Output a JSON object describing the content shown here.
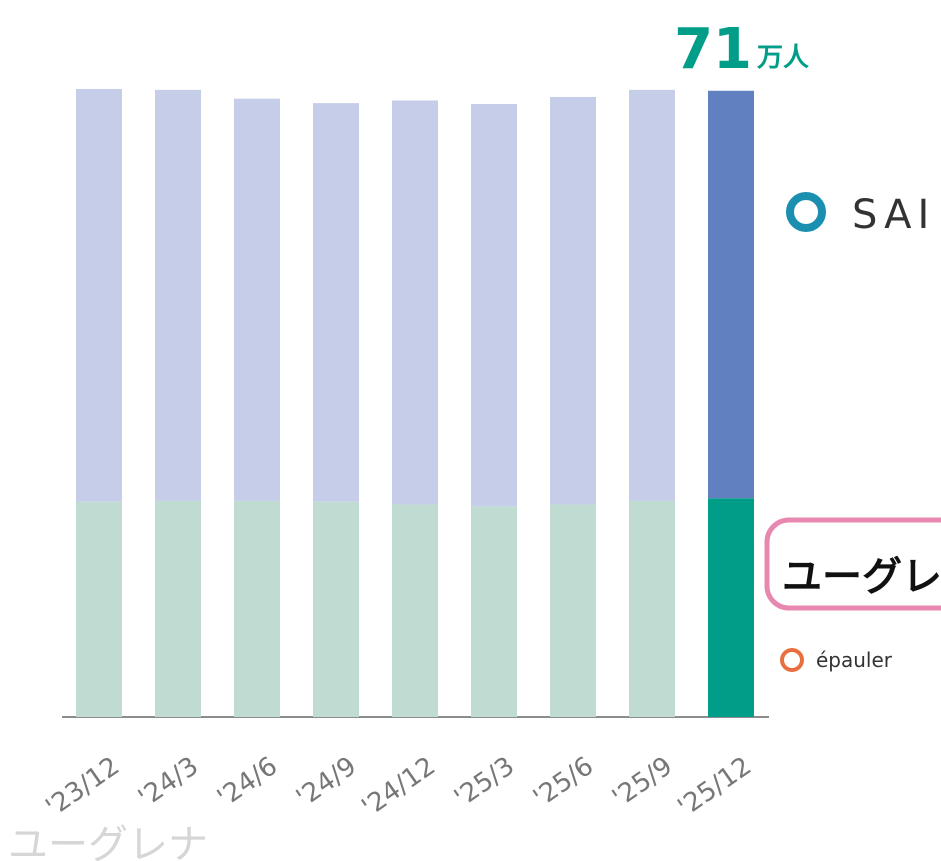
{
  "chart_data": {
    "type": "stacked_bar",
    "total_value": 71,
    "total_unit": "万人",
    "categories": [
      "'23/12",
      "'24/3",
      "'24/6",
      "'24/9",
      "'24/12",
      "'25/3",
      "'25/6",
      "'25/9",
      "'25/12"
    ],
    "series": [
      {
        "color": "#bfdbd2",
        "highlight_color": "#009e88",
        "values": [
          24.4,
          24.5,
          24.5,
          24.4,
          24.1,
          23.9,
          24.1,
          24.5,
          24.8
        ]
      },
      {
        "color": "#c6cde8",
        "highlight_color": "#6080c0",
        "values": [
          46.8,
          46.6,
          45.6,
          45.2,
          45.8,
          45.6,
          46.2,
          46.6,
          46.2
        ]
      }
    ],
    "logos": {
      "qsai": "SAI",
      "euglena": "ユーグレナ",
      "epauler": "épauler"
    }
  }
}
